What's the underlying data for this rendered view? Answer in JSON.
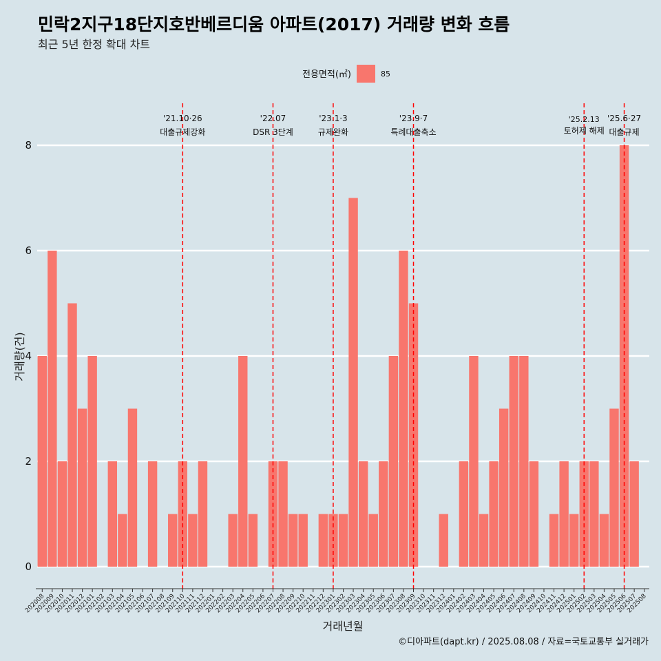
{
  "chart_data": {
    "type": "bar",
    "title": "민락2지구18단지호반베르디움 아파트(2017) 거래량 변화 흐름",
    "subtitle": "최근 5년 한정 확대 차트",
    "xlabel": "거래년월",
    "ylabel": "거래량(건)",
    "ylim": [
      0,
      8
    ],
    "yticks": [
      0,
      2,
      4,
      6,
      8
    ],
    "legend": {
      "title": "전용면적(㎡)",
      "entries": [
        {
          "name": "85",
          "color": "#f8766d"
        }
      ],
      "placement": "top"
    },
    "categories": [
      "202008",
      "202009",
      "202010",
      "202011",
      "202012",
      "202101",
      "202102",
      "202103",
      "202104",
      "202105",
      "202106",
      "202107",
      "202108",
      "202109",
      "202110",
      "202111",
      "202112",
      "202201",
      "202202",
      "202203",
      "202204",
      "202205",
      "202206",
      "202207",
      "202208",
      "202209",
      "202210",
      "202211",
      "202212",
      "202301",
      "202302",
      "202303",
      "202304",
      "202305",
      "202306",
      "202307",
      "202308",
      "202309",
      "202310",
      "202311",
      "202312",
      "202401",
      "202402",
      "202403",
      "202404",
      "202405",
      "202406",
      "202407",
      "202408",
      "202409",
      "202410",
      "202411",
      "202412",
      "202501",
      "202502",
      "202503",
      "202504",
      "202505",
      "202506",
      "202507",
      "202508"
    ],
    "series": [
      {
        "name": "85",
        "color": "#f8766d",
        "values": [
          4,
          6,
          2,
          5,
          3,
          4,
          0,
          2,
          1,
          3,
          0,
          2,
          0,
          1,
          2,
          1,
          2,
          0,
          0,
          1,
          4,
          1,
          0,
          2,
          2,
          1,
          1,
          0,
          1,
          1,
          1,
          7,
          2,
          1,
          2,
          4,
          6,
          5,
          0,
          0,
          1,
          0,
          2,
          4,
          1,
          2,
          3,
          4,
          4,
          2,
          0,
          1,
          2,
          1,
          2,
          2,
          1,
          3,
          8,
          2,
          0
        ]
      }
    ],
    "annotations": [
      {
        "category": "202110",
        "line1": "'21.10·26",
        "line2": "대출규제강화"
      },
      {
        "category": "202207",
        "line1": "'22.07",
        "line2": "DSR 3단계"
      },
      {
        "category": "202301",
        "line1": "'23.1·3",
        "line2": "규제완화"
      },
      {
        "category": "202309",
        "line1": "'23.9·7",
        "line2": "특례대출축소"
      },
      {
        "category": "202502",
        "line1": "'25.2.13",
        "line2": "토허제 해제"
      },
      {
        "category": "202506",
        "line1": "'25.6·27",
        "line2": "대출규제"
      }
    ],
    "grid": true
  },
  "caption": "©디아파트(dapt.kr) / 2025.08.08 / 자료=국토교통부 실거래가"
}
